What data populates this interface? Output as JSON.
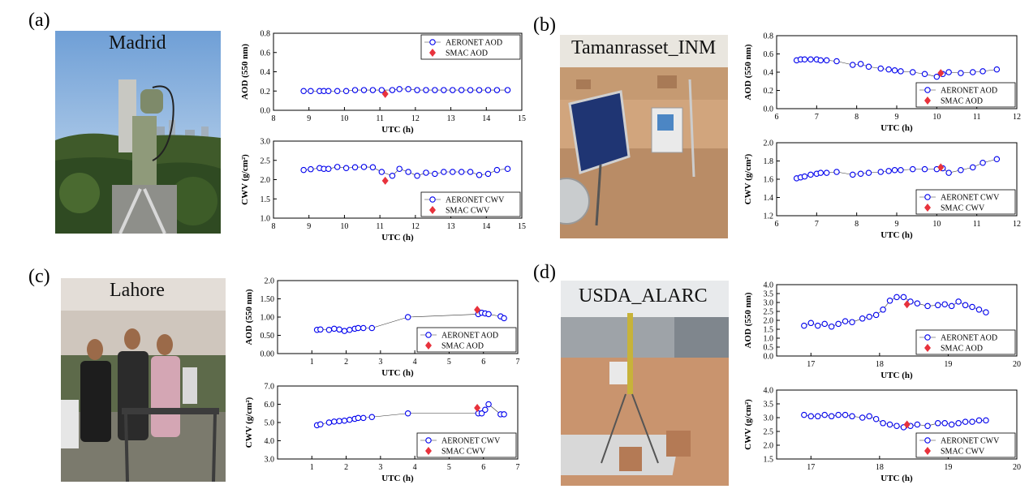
{
  "panels": [
    {
      "label": "(a)",
      "site": "Madrid"
    },
    {
      "label": "(b)",
      "site": "Tamanrasset_INM"
    },
    {
      "label": "(c)",
      "site": "Lahore"
    },
    {
      "label": "(d)",
      "site": "USDA_ALARC"
    }
  ],
  "chart_data": [
    {
      "id": "a-aod",
      "type": "line",
      "xlabel": "UTC (h)",
      "ylabel": "AOD (550 nm)",
      "xlim": [
        8,
        15
      ],
      "ylim": [
        0,
        0.8
      ],
      "xticks": [
        8,
        9,
        10,
        11,
        12,
        13,
        14,
        15
      ],
      "yticks": [
        "0.0",
        "0.2",
        "0.4",
        "0.6",
        "0.8"
      ],
      "series": [
        {
          "name": "AERONET AOD",
          "color": "#0000ee",
          "marker": "circle",
          "x": [
            8.85,
            9.05,
            9.3,
            9.42,
            9.55,
            9.8,
            10.05,
            10.3,
            10.55,
            10.8,
            11.05,
            11.35,
            11.55,
            11.8,
            12.05,
            12.3,
            12.55,
            12.8,
            13.05,
            13.3,
            13.55,
            13.8,
            14.05,
            14.3,
            14.6
          ],
          "y": [
            0.2,
            0.2,
            0.2,
            0.2,
            0.2,
            0.2,
            0.2,
            0.21,
            0.21,
            0.21,
            0.21,
            0.21,
            0.22,
            0.22,
            0.21,
            0.21,
            0.21,
            0.21,
            0.21,
            0.21,
            0.21,
            0.21,
            0.21,
            0.21,
            0.21
          ]
        },
        {
          "name": "SMAC AOD",
          "color": "#e8323c",
          "marker": "diamond",
          "x": [
            11.15
          ],
          "y": [
            0.17
          ]
        }
      ],
      "legend": "top-right"
    },
    {
      "id": "a-cwv",
      "type": "line",
      "xlabel": "UTC (h)",
      "ylabel": "CWV (g/cm²)",
      "xlim": [
        8,
        15
      ],
      "ylim": [
        1.0,
        3.0
      ],
      "xticks": [
        8,
        9,
        10,
        11,
        12,
        13,
        14,
        15
      ],
      "yticks": [
        "1.0",
        "1.5",
        "2.0",
        "2.5",
        "3.0"
      ],
      "series": [
        {
          "name": "AERONET CWV",
          "color": "#0000ee",
          "marker": "circle",
          "x": [
            8.85,
            9.05,
            9.3,
            9.42,
            9.55,
            9.8,
            10.05,
            10.3,
            10.55,
            10.8,
            11.05,
            11.35,
            11.55,
            11.8,
            12.05,
            12.3,
            12.55,
            12.8,
            13.05,
            13.3,
            13.55,
            13.8,
            14.05,
            14.3,
            14.6
          ],
          "y": [
            2.25,
            2.27,
            2.3,
            2.28,
            2.28,
            2.33,
            2.3,
            2.32,
            2.33,
            2.32,
            2.2,
            2.1,
            2.28,
            2.2,
            2.1,
            2.18,
            2.15,
            2.2,
            2.2,
            2.2,
            2.2,
            2.12,
            2.15,
            2.25,
            2.28
          ]
        },
        {
          "name": "SMAC CWV",
          "color": "#e8323c",
          "marker": "diamond",
          "x": [
            11.15
          ],
          "y": [
            1.97
          ]
        }
      ],
      "legend": "bottom-right"
    },
    {
      "id": "b-aod",
      "type": "line",
      "xlabel": "UTC (h)",
      "ylabel": "AOD (550 nm)",
      "xlim": [
        6,
        12
      ],
      "ylim": [
        0,
        0.8
      ],
      "xticks": [
        6,
        7,
        8,
        9,
        10,
        11,
        12
      ],
      "yticks": [
        "0.0",
        "0.2",
        "0.4",
        "0.6",
        "0.8"
      ],
      "series": [
        {
          "name": "AERONET AOD",
          "color": "#0000ee",
          "marker": "circle",
          "x": [
            6.5,
            6.6,
            6.7,
            6.85,
            7.0,
            7.1,
            7.25,
            7.5,
            7.9,
            8.1,
            8.3,
            8.6,
            8.8,
            8.95,
            9.1,
            9.4,
            9.7,
            10.0,
            10.15,
            10.3,
            10.6,
            10.9,
            11.15,
            11.5
          ],
          "y": [
            0.53,
            0.54,
            0.54,
            0.54,
            0.54,
            0.53,
            0.53,
            0.52,
            0.48,
            0.49,
            0.46,
            0.44,
            0.43,
            0.42,
            0.41,
            0.4,
            0.38,
            0.35,
            0.38,
            0.4,
            0.39,
            0.4,
            0.41,
            0.43
          ]
        },
        {
          "name": "SMAC AOD",
          "color": "#e8323c",
          "marker": "diamond",
          "x": [
            10.1
          ],
          "y": [
            0.39
          ]
        }
      ],
      "legend": "bottom-right"
    },
    {
      "id": "b-cwv",
      "type": "line",
      "xlabel": "UTC (h)",
      "ylabel": "CWV (g/cm²)",
      "xlim": [
        6,
        12
      ],
      "ylim": [
        1.2,
        2.0
      ],
      "xticks": [
        6,
        7,
        8,
        9,
        10,
        11,
        12
      ],
      "yticks": [
        "1.2",
        "1.4",
        "1.6",
        "1.8",
        "2.0"
      ],
      "series": [
        {
          "name": "AERONET CWV",
          "color": "#0000ee",
          "marker": "circle",
          "x": [
            6.5,
            6.6,
            6.7,
            6.85,
            7.0,
            7.1,
            7.25,
            7.5,
            7.9,
            8.1,
            8.3,
            8.6,
            8.8,
            8.95,
            9.1,
            9.4,
            9.7,
            10.0,
            10.15,
            10.3,
            10.6,
            10.9,
            11.15,
            11.5
          ],
          "y": [
            1.61,
            1.62,
            1.63,
            1.65,
            1.66,
            1.67,
            1.67,
            1.68,
            1.65,
            1.66,
            1.67,
            1.68,
            1.69,
            1.7,
            1.7,
            1.71,
            1.71,
            1.71,
            1.72,
            1.67,
            1.7,
            1.73,
            1.78,
            1.82
          ]
        },
        {
          "name": "SMAC CWV",
          "color": "#e8323c",
          "marker": "diamond",
          "x": [
            10.1
          ],
          "y": [
            1.73
          ]
        }
      ],
      "legend": "bottom-right"
    },
    {
      "id": "c-aod",
      "type": "line",
      "xlabel": "UTC (h)",
      "ylabel": "AOD (550 nm)",
      "xlim": [
        0,
        7
      ],
      "ylim": [
        0,
        2.0
      ],
      "xticks": [
        1,
        2,
        3,
        4,
        5,
        6,
        7
      ],
      "yticks": [
        "0.00",
        "0.50",
        "1.00",
        "1.50",
        "2.0"
      ],
      "series": [
        {
          "name": "AERONET AOD",
          "color": "#0000ee",
          "marker": "circle",
          "x": [
            1.15,
            1.25,
            1.5,
            1.65,
            1.8,
            1.95,
            2.1,
            2.25,
            2.35,
            2.5,
            2.75,
            3.8,
            5.85,
            5.95,
            6.05,
            6.15,
            6.5,
            6.6
          ],
          "y": [
            0.65,
            0.66,
            0.65,
            0.68,
            0.66,
            0.62,
            0.65,
            0.68,
            0.7,
            0.7,
            0.7,
            1.0,
            1.08,
            1.12,
            1.1,
            1.08,
            1.02,
            0.97
          ]
        },
        {
          "name": "SMAC AOD",
          "color": "#e8323c",
          "marker": "diamond",
          "x": [
            5.82
          ],
          "y": [
            1.2
          ]
        }
      ],
      "legend": "bottom-right"
    },
    {
      "id": "c-cwv",
      "type": "line",
      "xlabel": "UTC (h)",
      "ylabel": "CWV (g/cm²)",
      "xlim": [
        0,
        7
      ],
      "ylim": [
        3.0,
        7.0
      ],
      "xticks": [
        1,
        2,
        3,
        4,
        5,
        6,
        7
      ],
      "yticks": [
        "3.0",
        "4.0",
        "5.0",
        "6.0",
        "7.0"
      ],
      "series": [
        {
          "name": "AERONET CWV",
          "color": "#0000ee",
          "marker": "circle",
          "x": [
            1.15,
            1.25,
            1.5,
            1.65,
            1.8,
            1.95,
            2.1,
            2.25,
            2.35,
            2.5,
            2.75,
            3.8,
            5.85,
            5.95,
            6.05,
            6.15,
            6.5,
            6.6
          ],
          "y": [
            4.85,
            4.9,
            5.0,
            5.05,
            5.08,
            5.1,
            5.15,
            5.2,
            5.25,
            5.25,
            5.3,
            5.5,
            5.5,
            5.5,
            5.7,
            6.0,
            5.45,
            5.45
          ]
        },
        {
          "name": "SMAC CWV",
          "color": "#e8323c",
          "marker": "diamond",
          "x": [
            5.82
          ],
          "y": [
            5.8
          ]
        }
      ],
      "legend": "bottom-right"
    },
    {
      "id": "d-aod",
      "type": "line",
      "xlabel": "UTC (h)",
      "ylabel": "AOD (550 nm)",
      "xlim": [
        16.5,
        20
      ],
      "ylim": [
        0,
        4.0
      ],
      "xticks": [
        17,
        18,
        19,
        20
      ],
      "yticks": [
        "0.0",
        "0.5",
        "1.0",
        "1.5",
        "2.0",
        "2.5",
        "3.0",
        "3.5",
        "4.0"
      ],
      "series": [
        {
          "name": "AERONET AOD",
          "color": "#0000ee",
          "marker": "circle",
          "x": [
            16.9,
            17.0,
            17.1,
            17.2,
            17.3,
            17.4,
            17.5,
            17.6,
            17.75,
            17.85,
            17.95,
            18.05,
            18.15,
            18.25,
            18.35,
            18.45,
            18.55,
            18.7,
            18.85,
            18.95,
            19.05,
            19.15,
            19.25,
            19.35,
            19.45,
            19.55
          ],
          "y": [
            1.7,
            1.85,
            1.7,
            1.8,
            1.65,
            1.8,
            1.95,
            1.9,
            2.1,
            2.2,
            2.3,
            2.6,
            3.1,
            3.3,
            3.3,
            3.05,
            2.95,
            2.8,
            2.85,
            2.9,
            2.8,
            3.05,
            2.85,
            2.75,
            2.6,
            2.45
          ]
        },
        {
          "name": "SMAC AOD",
          "color": "#e8323c",
          "marker": "diamond",
          "x": [
            18.4
          ],
          "y": [
            2.9
          ]
        }
      ],
      "legend": "bottom-right"
    },
    {
      "id": "d-cwv",
      "type": "line",
      "xlabel": "UTC (h)",
      "ylabel": "CWV (g/cm²)",
      "xlim": [
        16.5,
        20
      ],
      "ylim": [
        1.5,
        4.0
      ],
      "xticks": [
        17,
        18,
        19,
        20
      ],
      "yticks": [
        "1.5",
        "2.0",
        "2.5",
        "3.0",
        "3.5",
        "4.0"
      ],
      "series": [
        {
          "name": "AERONET CWV",
          "color": "#0000ee",
          "marker": "circle",
          "x": [
            16.9,
            17.0,
            17.1,
            17.2,
            17.3,
            17.4,
            17.5,
            17.6,
            17.75,
            17.85,
            17.95,
            18.05,
            18.15,
            18.25,
            18.35,
            18.45,
            18.55,
            18.7,
            18.85,
            18.95,
            19.05,
            19.15,
            19.25,
            19.35,
            19.45,
            19.55
          ],
          "y": [
            3.1,
            3.05,
            3.05,
            3.1,
            3.05,
            3.1,
            3.1,
            3.05,
            3.0,
            3.05,
            2.95,
            2.8,
            2.75,
            2.7,
            2.65,
            2.7,
            2.75,
            2.7,
            2.8,
            2.8,
            2.75,
            2.8,
            2.85,
            2.85,
            2.9,
            2.9
          ]
        },
        {
          "name": "SMAC CWV",
          "color": "#e8323c",
          "marker": "diamond",
          "x": [
            18.4
          ],
          "y": [
            2.75
          ]
        }
      ],
      "legend": "bottom-right"
    }
  ]
}
